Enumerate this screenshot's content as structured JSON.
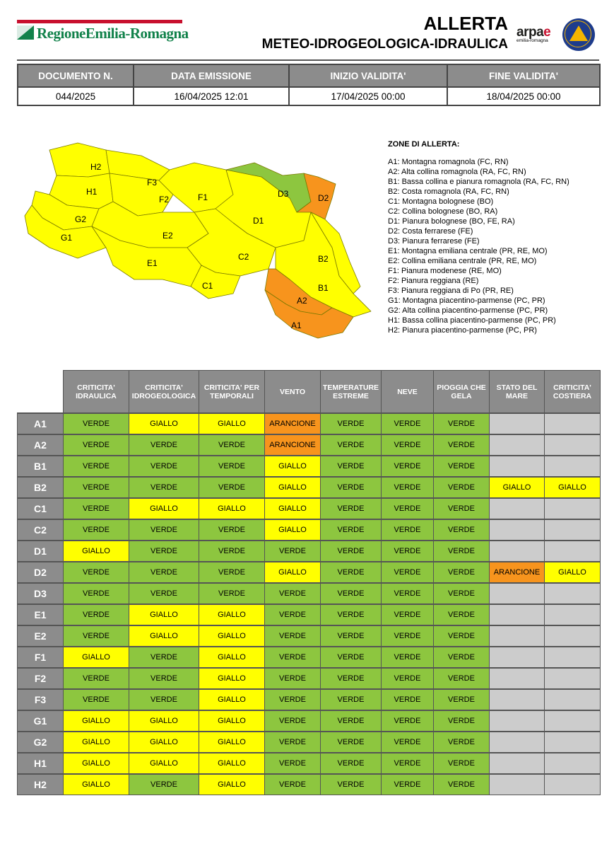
{
  "header": {
    "logo_text": "RegioneEmilia-Romagna",
    "title_line1": "ALLERTA",
    "title_line2": "METEO-IDROGEOLOGICA-IDRAULICA",
    "arpae_logo": "arpae",
    "arpae_sub": "emilia-romagna"
  },
  "document": {
    "headers": [
      "DOCUMENTO N.",
      "DATA EMISSIONE",
      "INIZIO VALIDITA'",
      "FINE VALIDITA'"
    ],
    "values": [
      "044/2025",
      "16/04/2025 12:01",
      "17/04/2025 00:00",
      "18/04/2025 00:00"
    ]
  },
  "colors": {
    "VERDE": "#8dc63f",
    "GIALLO": "#ffff00",
    "ARANCIONE": "#f7941d",
    "header_gray": "#8c8c8c",
    "empty_gray": "#cccccc"
  },
  "map": {
    "zones": [
      {
        "label": "H2",
        "level": "GIALLO"
      },
      {
        "label": "F3",
        "level": "GIALLO"
      },
      {
        "label": "H1",
        "level": "GIALLO"
      },
      {
        "label": "F2",
        "level": "GIALLO"
      },
      {
        "label": "F1",
        "level": "GIALLO"
      },
      {
        "label": "D3",
        "level": "VERDE"
      },
      {
        "label": "D2",
        "level": "ARANCIONE"
      },
      {
        "label": "G2",
        "level": "GIALLO"
      },
      {
        "label": "D1",
        "level": "GIALLO"
      },
      {
        "label": "G1",
        "level": "GIALLO"
      },
      {
        "label": "E2",
        "level": "GIALLO"
      },
      {
        "label": "C2",
        "level": "GIALLO"
      },
      {
        "label": "B2",
        "level": "GIALLO"
      },
      {
        "label": "E1",
        "level": "GIALLO"
      },
      {
        "label": "B1",
        "level": "GIALLO"
      },
      {
        "label": "C1",
        "level": "GIALLO"
      },
      {
        "label": "A2",
        "level": "ARANCIONE"
      },
      {
        "label": "A1",
        "level": "ARANCIONE"
      }
    ]
  },
  "legend": {
    "title": "ZONE DI ALLERTA:",
    "items": [
      "A1: Montagna romagnola (FC, RN)",
      "A2: Alta collina romagnola (RA, FC, RN)",
      "B1: Bassa collina e pianura romagnola (RA, FC, RN)",
      "B2: Costa romagnola (RA, FC, RN)",
      "C1: Montagna bolognese (BO)",
      "C2: Collina bolognese (BO, RA)",
      "D1: Pianura bolognese (BO, FE, RA)",
      "D2: Costa ferrarese (FE)",
      "D3: Pianura ferrarese (FE)",
      "E1: Montagna emiliana centrale (PR, RE, MO)",
      "E2: Collina emiliana centrale (PR, RE, MO)",
      "F1: Pianura modenese (RE, MO)",
      "F2: Pianura reggiana (RE)",
      "F3: Pianura reggiana di Po (PR, RE)",
      "G1: Montagna piacentino-parmense (PC, PR)",
      "G2: Alta collina piacentino-parmense (PC, PR)",
      "H1: Bassa collina piacentino-parmense (PC, PR)",
      "H2: Pianura piacentino-parmense (PC, PR)"
    ]
  },
  "table": {
    "columns": [
      "CRITICITA' IDRAULICA",
      "CRITICITA' IDROGEOLOGICA",
      "CRITICITA' PER TEMPORALI",
      "VENTO",
      "TEMPERATURE ESTREME",
      "NEVE",
      "PIOGGIA CHE GELA",
      "STATO DEL MARE",
      "CRITICITA' COSTIERA"
    ],
    "rows": [
      {
        "zone": "A1",
        "values": [
          "VERDE",
          "GIALLO",
          "GIALLO",
          "ARANCIONE",
          "VERDE",
          "VERDE",
          "VERDE",
          "",
          ""
        ]
      },
      {
        "zone": "A2",
        "values": [
          "VERDE",
          "VERDE",
          "VERDE",
          "ARANCIONE",
          "VERDE",
          "VERDE",
          "VERDE",
          "",
          ""
        ]
      },
      {
        "zone": "B1",
        "values": [
          "VERDE",
          "VERDE",
          "VERDE",
          "GIALLO",
          "VERDE",
          "VERDE",
          "VERDE",
          "",
          ""
        ]
      },
      {
        "zone": "B2",
        "values": [
          "VERDE",
          "VERDE",
          "VERDE",
          "GIALLO",
          "VERDE",
          "VERDE",
          "VERDE",
          "GIALLO",
          "GIALLO"
        ]
      },
      {
        "zone": "C1",
        "values": [
          "VERDE",
          "GIALLO",
          "GIALLO",
          "GIALLO",
          "VERDE",
          "VERDE",
          "VERDE",
          "",
          ""
        ]
      },
      {
        "zone": "C2",
        "values": [
          "VERDE",
          "VERDE",
          "VERDE",
          "GIALLO",
          "VERDE",
          "VERDE",
          "VERDE",
          "",
          ""
        ]
      },
      {
        "zone": "D1",
        "values": [
          "GIALLO",
          "VERDE",
          "VERDE",
          "VERDE",
          "VERDE",
          "VERDE",
          "VERDE",
          "",
          ""
        ]
      },
      {
        "zone": "D2",
        "values": [
          "VERDE",
          "VERDE",
          "VERDE",
          "GIALLO",
          "VERDE",
          "VERDE",
          "VERDE",
          "ARANCIONE",
          "GIALLO"
        ]
      },
      {
        "zone": "D3",
        "values": [
          "VERDE",
          "VERDE",
          "VERDE",
          "VERDE",
          "VERDE",
          "VERDE",
          "VERDE",
          "",
          ""
        ]
      },
      {
        "zone": "E1",
        "values": [
          "VERDE",
          "GIALLO",
          "GIALLO",
          "VERDE",
          "VERDE",
          "VERDE",
          "VERDE",
          "",
          ""
        ]
      },
      {
        "zone": "E2",
        "values": [
          "VERDE",
          "GIALLO",
          "GIALLO",
          "VERDE",
          "VERDE",
          "VERDE",
          "VERDE",
          "",
          ""
        ]
      },
      {
        "zone": "F1",
        "values": [
          "GIALLO",
          "VERDE",
          "GIALLO",
          "VERDE",
          "VERDE",
          "VERDE",
          "VERDE",
          "",
          ""
        ]
      },
      {
        "zone": "F2",
        "values": [
          "VERDE",
          "VERDE",
          "GIALLO",
          "VERDE",
          "VERDE",
          "VERDE",
          "VERDE",
          "",
          ""
        ]
      },
      {
        "zone": "F3",
        "values": [
          "VERDE",
          "VERDE",
          "GIALLO",
          "VERDE",
          "VERDE",
          "VERDE",
          "VERDE",
          "",
          ""
        ]
      },
      {
        "zone": "G1",
        "values": [
          "GIALLO",
          "GIALLO",
          "GIALLO",
          "VERDE",
          "VERDE",
          "VERDE",
          "VERDE",
          "",
          ""
        ]
      },
      {
        "zone": "G2",
        "values": [
          "GIALLO",
          "GIALLO",
          "GIALLO",
          "VERDE",
          "VERDE",
          "VERDE",
          "VERDE",
          "",
          ""
        ]
      },
      {
        "zone": "H1",
        "values": [
          "GIALLO",
          "GIALLO",
          "GIALLO",
          "VERDE",
          "VERDE",
          "VERDE",
          "VERDE",
          "",
          ""
        ]
      },
      {
        "zone": "H2",
        "values": [
          "GIALLO",
          "VERDE",
          "GIALLO",
          "VERDE",
          "VERDE",
          "VERDE",
          "VERDE",
          "",
          ""
        ]
      }
    ]
  }
}
